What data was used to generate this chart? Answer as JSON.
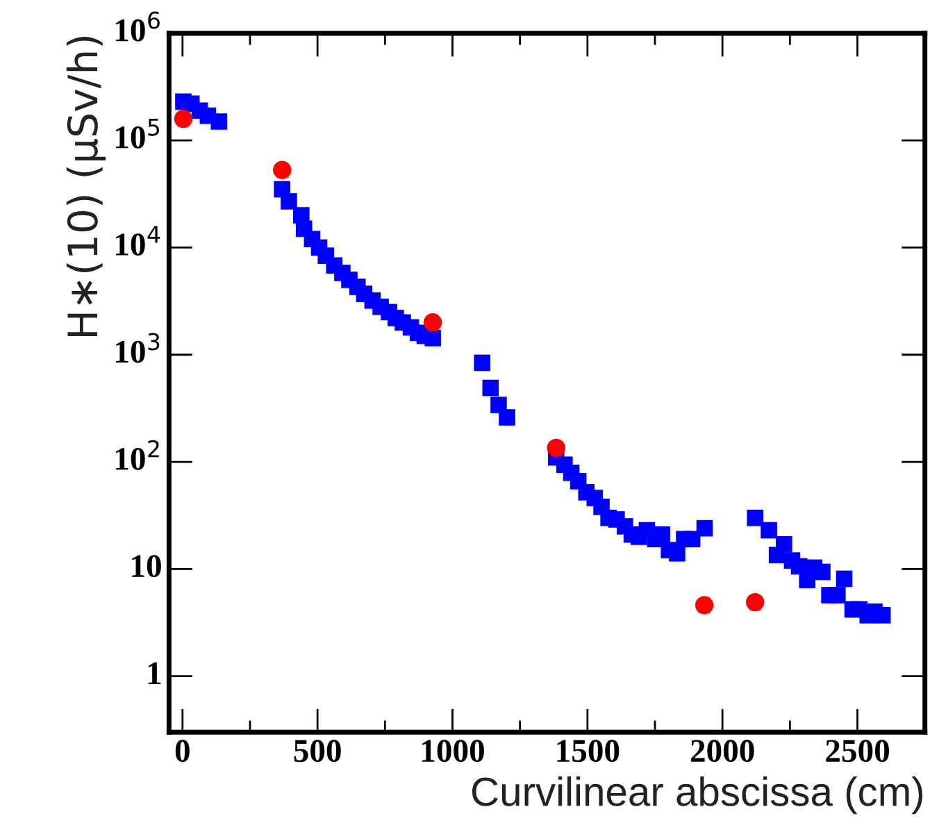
{
  "chart_data": {
    "type": "scatter",
    "xlabel": "Curvilinear abscissa (cm)",
    "ylabel": "H∗(10) (μSv/h)",
    "log": "y",
    "xlim": [
      -50,
      2750
    ],
    "xticks": [
      0,
      500,
      1000,
      1500,
      2000,
      2500
    ],
    "ylim": [
      0.3,
      1000000
    ],
    "yticks": [
      1,
      10,
      {
        "value": 100,
        "label": "10$^{2}$"
      },
      {
        "value": 1000,
        "label": "10$^{3}$"
      },
      {
        "value": 10000,
        "label": "10$^{4}$"
      },
      {
        "value": 100000,
        "label": "10$^{5}$"
      },
      {
        "value": 1000000,
        "label": "10$^{6}$"
      }
    ],
    "grid": false,
    "legend": false,
    "series": [
      {
        "color": "#0000ff",
        "marker": "square",
        "x": [
          3,
          33,
          64,
          94,
          135,
          369,
          394,
          440,
          450,
          480,
          506,
          531,
          562,
          592,
          618,
          648,
          673,
          704,
          734,
          765,
          790,
          816,
          846,
          872,
          897,
          927,
          1110,
          1141,
          1171,
          1202,
          1384,
          1415,
          1440,
          1466,
          1496,
          1527,
          1552,
          1578,
          1608,
          1639,
          1664,
          1690,
          1720,
          1751,
          1776,
          1802,
          1832,
          1858,
          1888,
          1934,
          2121,
          2172,
          2202,
          2228,
          2258,
          2284,
          2314,
          2340,
          2370,
          2396,
          2426,
          2451,
          2482,
          2507,
          2538,
          2563,
          2593
        ],
        "values": [
          230000,
          220000,
          190000,
          170000,
          150000,
          35000,
          27000,
          20000,
          15000,
          12000,
          10000,
          8400,
          6800,
          5800,
          5000,
          4300,
          3700,
          3200,
          2800,
          2500,
          2200,
          2000,
          1800,
          1600,
          1500,
          1430,
          840,
          490,
          340,
          260,
          110,
          94,
          79,
          66,
          52,
          46,
          38,
          30,
          29,
          25,
          21,
          20,
          23,
          19,
          21,
          15,
          14,
          19,
          19,
          24,
          30,
          23,
          13.5,
          17,
          12,
          10.6,
          7.9,
          10.3,
          9.4,
          5.7,
          5.7,
          8.1,
          4.2,
          4.2,
          3.7,
          4.0,
          3.7
        ]
      },
      {
        "color": "#ff0000",
        "marker": "circle",
        "x": [
          3,
          369,
          927,
          1384,
          1933,
          2121
        ],
        "values": [
          159000,
          53000,
          2000,
          135,
          4.6,
          4.9
        ]
      }
    ]
  }
}
